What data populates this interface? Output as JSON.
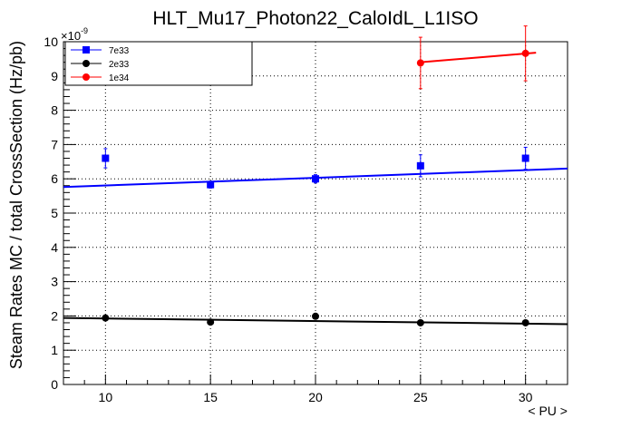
{
  "chart_data": {
    "type": "scatter",
    "title": "HLT_Mu17_Photon22_CaloIdL_L1ISO",
    "xlabel": "< PU >",
    "ylabel": "Steam Rates MC / total CrossSection (Hz/pb)",
    "y_exponent_label": "×10",
    "y_exponent_power": "-9",
    "xlim": [
      8,
      32
    ],
    "ylim": [
      0,
      10
    ],
    "x_ticks": [
      10,
      15,
      20,
      25,
      30
    ],
    "y_ticks": [
      0,
      1,
      2,
      3,
      4,
      5,
      6,
      7,
      8,
      9,
      10
    ],
    "x_tick_labels": [
      "10",
      "15",
      "20",
      "25",
      "30"
    ],
    "y_tick_labels": [
      "0",
      "1",
      "2",
      "3",
      "4",
      "5",
      "6",
      "7",
      "8",
      "9",
      "10"
    ],
    "grid": true,
    "legend_position": "top-left",
    "series": [
      {
        "name": "7e33",
        "color": "#0000ff",
        "marker": "square",
        "x": [
          10,
          15,
          20,
          25,
          30
        ],
        "y": [
          6.6,
          5.83,
          6.0,
          6.38,
          6.6
        ],
        "yerr": [
          0.28,
          0.1,
          0.12,
          0.32,
          0.32
        ],
        "fit": {
          "x": [
            8,
            32
          ],
          "y": [
            5.76,
            6.3
          ]
        }
      },
      {
        "name": "2e33",
        "color": "#000000",
        "marker": "circle",
        "x": [
          10,
          15,
          20,
          25,
          30
        ],
        "y": [
          1.94,
          1.82,
          1.99,
          1.8,
          1.8
        ],
        "yerr": [
          0.05,
          0.05,
          0.05,
          0.05,
          0.05
        ],
        "fit": {
          "x": [
            8,
            32
          ],
          "y": [
            1.94,
            1.76
          ]
        }
      },
      {
        "name": "1e34",
        "color": "#ff0000",
        "marker": "circle",
        "x": [
          25,
          30
        ],
        "y": [
          9.38,
          9.66
        ],
        "yerr": [
          0.75,
          0.8
        ],
        "fit": {
          "x": [
            25,
            30.5
          ],
          "y": [
            9.4,
            9.68
          ]
        }
      }
    ]
  }
}
